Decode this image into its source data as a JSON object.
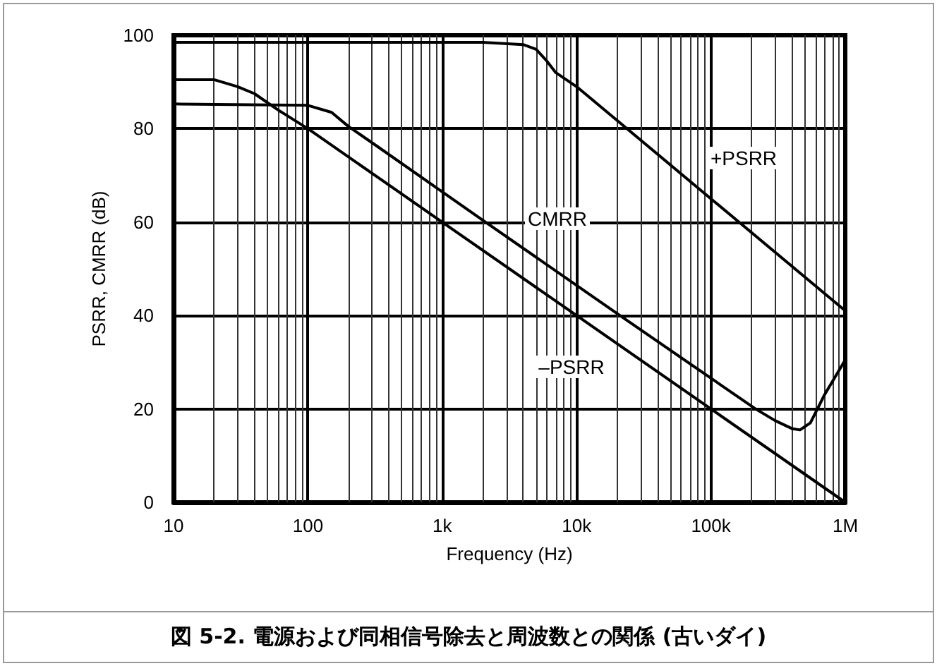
{
  "chart_data": {
    "type": "line",
    "title": "図 5-2. 電源および同相信号除去と周波数との関係 (古いダイ)",
    "xlabel": "Frequency (Hz)",
    "ylabel": "PSRR, CMRR (dB)",
    "log": "x",
    "xlim": [
      10,
      1000000
    ],
    "xticks": [
      {
        "value": 10,
        "label": "10"
      },
      {
        "value": 100,
        "label": "100"
      },
      {
        "value": 1000,
        "label": "1k"
      },
      {
        "value": 10000,
        "label": "10k"
      },
      {
        "value": 100000,
        "label": "100k"
      },
      {
        "value": 1000000,
        "label": "1M"
      }
    ],
    "ylim": [
      0,
      100
    ],
    "yticks": [
      0,
      20,
      40,
      60,
      80,
      100
    ],
    "grid": true,
    "series": [
      {
        "color": "#000000",
        "x": [
          10,
          2000,
          4000,
          5000,
          6000,
          7000,
          10000,
          100000,
          1000000
        ],
        "values": [
          98.5,
          98.5,
          98,
          97,
          94.5,
          92,
          89,
          65,
          41
        ]
      },
      {
        "color": "#000000",
        "x": [
          10,
          100,
          150,
          200,
          300,
          2100,
          21000,
          215000,
          300000,
          400000,
          460000,
          550000,
          700000,
          1000000
        ],
        "values": [
          85.3,
          85,
          83.5,
          80.5,
          77,
          60,
          40,
          20,
          17.5,
          15.8,
          15.5,
          17,
          23,
          30.5
        ]
      },
      {
        "color": "#000000",
        "x": [
          10,
          20,
          30,
          40,
          60,
          100,
          1000,
          10000,
          100000,
          1000000
        ],
        "values": [
          90.5,
          90.5,
          89,
          87.5,
          84,
          80,
          60,
          40,
          20,
          0
        ]
      }
    ],
    "annotations": [
      "+PSRR",
      "CMRR",
      "–PSRR"
    ]
  }
}
